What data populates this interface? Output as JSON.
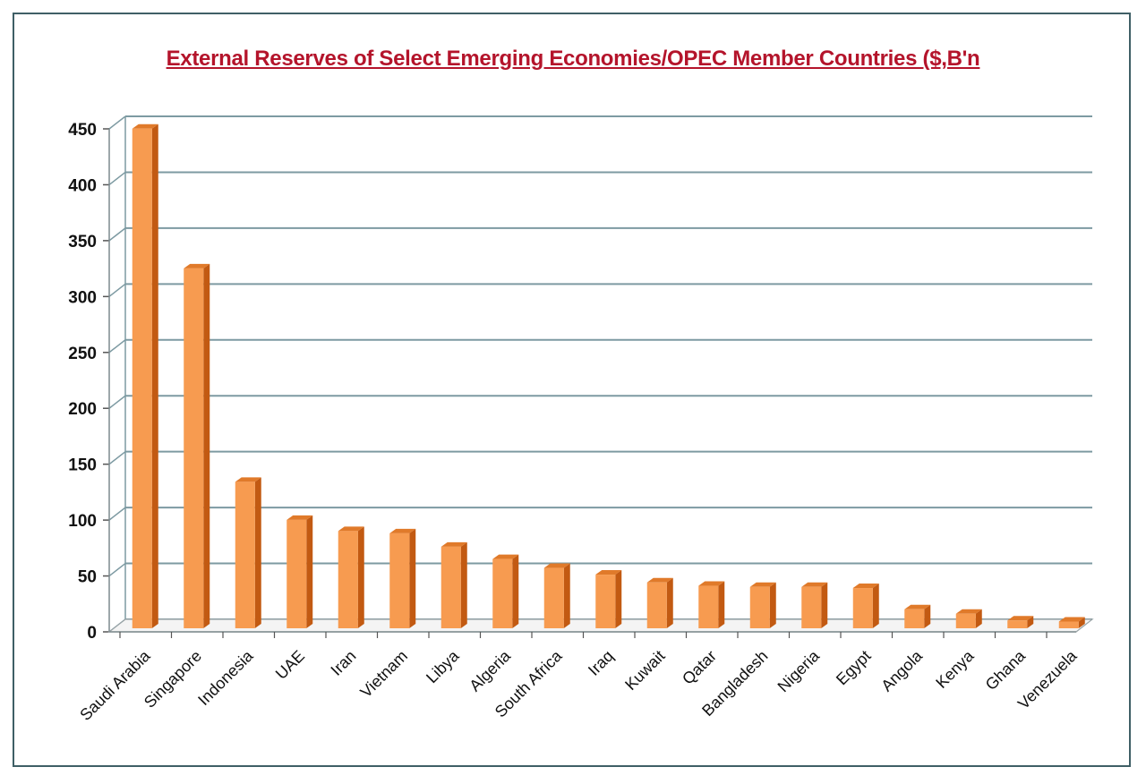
{
  "chart_data": {
    "type": "bar",
    "title": "External Reserves of Select Emerging Economies/OPEC Member Countries ($,B'n",
    "xlabel": "",
    "ylabel": "",
    "ylim": [
      0,
      450
    ],
    "yticks": [
      0,
      50,
      100,
      150,
      200,
      250,
      300,
      350,
      400,
      450
    ],
    "grid": true,
    "categories": [
      "Saudi Arabia",
      "Singapore",
      "Indonesia",
      "UAE",
      "Iran",
      "Vietnam",
      "Libya",
      "Algeria",
      "South Africa",
      "Iraq",
      "Kuwait",
      "Qatar",
      "Bangladesh",
      "Nigeria",
      "Egypt",
      "Angola",
      "Kenya",
      "Ghana",
      "Venezuela"
    ],
    "series": [
      {
        "values": [
          447,
          322,
          131,
          97,
          87,
          85,
          73,
          62,
          54,
          48,
          41,
          38,
          37,
          37,
          36,
          17,
          13,
          7,
          6
        ]
      }
    ],
    "colors": {
      "bar_front": "#f79b50",
      "bar_side": "#c25a12",
      "bar_top": "#e07a2a",
      "grid": "#7d9aa2",
      "title": "#b4142b"
    }
  }
}
